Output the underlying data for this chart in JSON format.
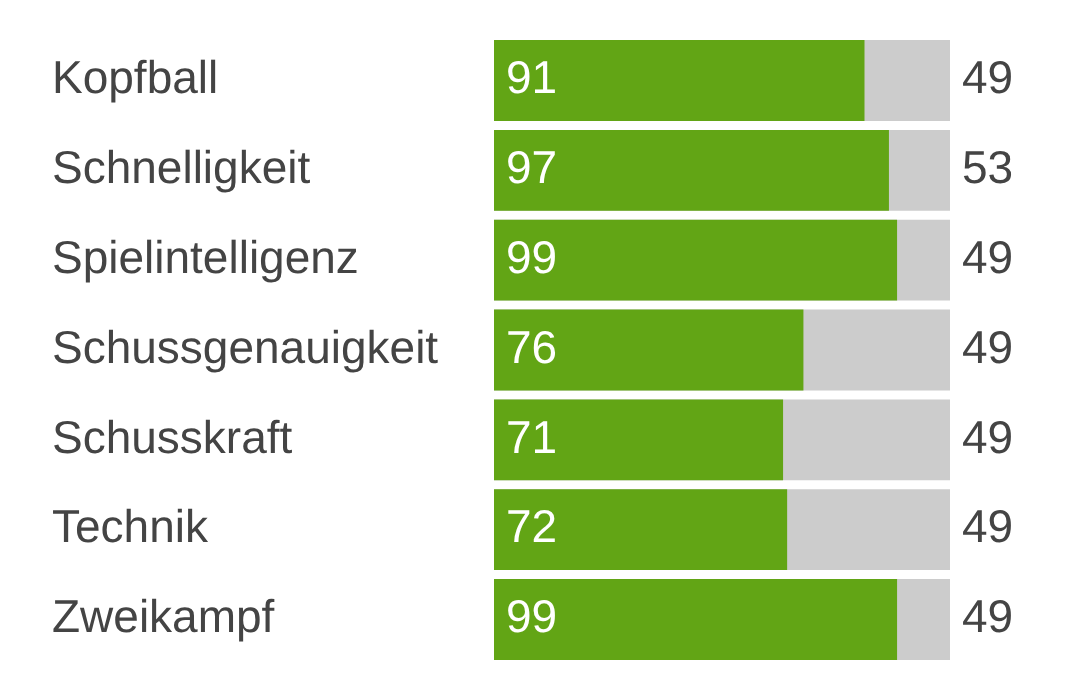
{
  "chart_data": {
    "type": "bar",
    "orientation": "horizontal",
    "categories": [
      "Kopfball",
      "Schnelligkeit",
      "Spielintelligenz",
      "Schussgenauigkeit",
      "Schusskraft",
      "Technik",
      "Zweikampf"
    ],
    "values": [
      91,
      97,
      99,
      76,
      71,
      72,
      99
    ],
    "color": "#62a515",
    "data_labels": true,
    "xlim": [
      0,
      112
    ],
    "tick_labels": "y",
    "legend": false,
    "annotations": [
      "49",
      "53",
      "49",
      "49",
      "49",
      "49",
      "49"
    ]
  }
}
